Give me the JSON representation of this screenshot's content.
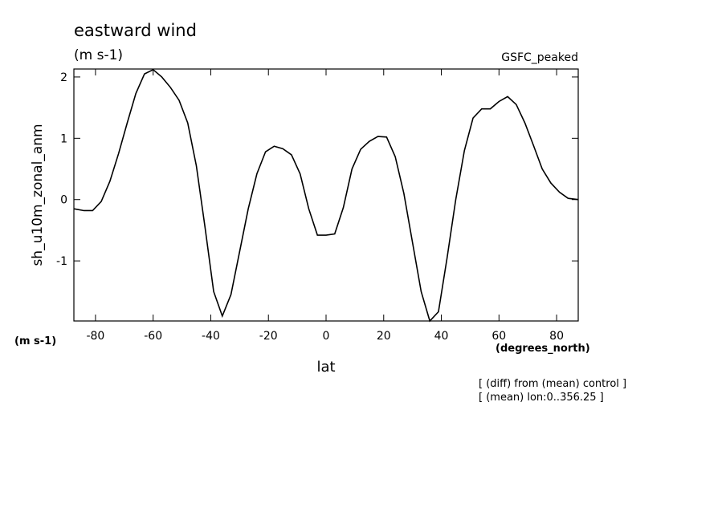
{
  "chart_data": {
    "type": "line",
    "title": "eastward wind",
    "subtitle": "(m s-1)",
    "source_label": "GSFC_peaked",
    "ylabel": "sh_u10m_zonal_anm",
    "y_units": "(m s-1)",
    "x_units": "(degrees_north)",
    "xlabel": "lat",
    "notes": [
      "[ (diff) from (mean) control ]",
      "[ (mean) lon:0..356.25 ]"
    ],
    "x": [
      -87.5,
      -84,
      -81,
      -78,
      -75,
      -72,
      -69,
      -66,
      -63,
      -60,
      -57,
      -54,
      -51,
      -48,
      -45,
      -42,
      -39,
      -36,
      -33,
      -30,
      -27,
      -24,
      -21,
      -18,
      -15,
      -12,
      -9,
      -6,
      -3,
      0,
      3,
      6,
      9,
      12,
      15,
      18,
      21,
      24,
      27,
      30,
      33,
      36,
      39,
      42,
      45,
      48,
      51,
      54,
      57,
      60,
      63,
      66,
      69,
      72,
      75,
      78,
      81,
      84,
      87.5
    ],
    "series": [
      {
        "color": "#000000",
        "values": [
          -0.15,
          -0.18,
          -0.18,
          -0.03,
          0.3,
          0.75,
          1.25,
          1.73,
          2.05,
          2.12,
          2.0,
          1.83,
          1.62,
          1.25,
          0.55,
          -0.45,
          -1.5,
          -1.9,
          -1.55,
          -0.85,
          -0.15,
          0.42,
          0.78,
          0.87,
          0.83,
          0.73,
          0.42,
          -0.15,
          -0.58,
          -0.58,
          -0.56,
          -0.13,
          0.5,
          0.82,
          0.95,
          1.03,
          1.02,
          0.7,
          0.1,
          -0.7,
          -1.5,
          -1.98,
          -1.83,
          -0.95,
          0.0,
          0.8,
          1.33,
          1.48,
          1.48,
          1.6,
          1.68,
          1.55,
          1.25,
          0.88,
          0.5,
          0.27,
          0.12,
          0.02,
          0.0
        ]
      }
    ],
    "xlim": [
      -87.5,
      87.5
    ],
    "xticks": [
      -80,
      -60,
      -40,
      -20,
      0,
      20,
      40,
      60,
      80
    ],
    "ylim": [
      -1.98,
      2.13
    ],
    "yticks": [
      -1,
      0,
      1,
      2
    ]
  }
}
